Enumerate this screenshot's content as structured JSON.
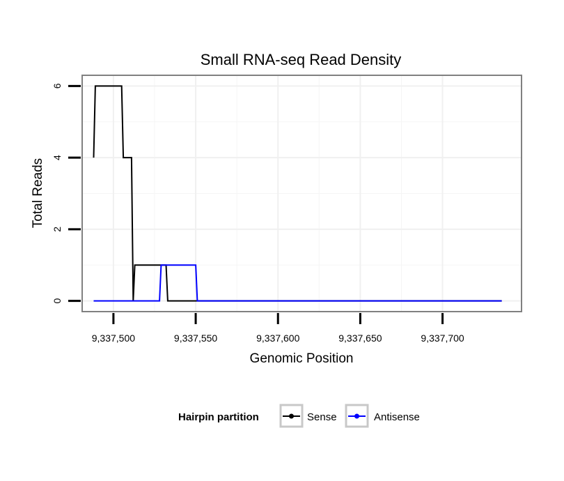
{
  "chart_data": {
    "type": "line",
    "title": "Small RNA-seq Read Density",
    "xlabel": "Genomic Position",
    "ylabel": "Total Reads",
    "xlim": [
      9337481,
      9337748
    ],
    "ylim": [
      -0.3,
      6.3
    ],
    "x_ticks": [
      9337500,
      9337550,
      9337600,
      9337650,
      9337700
    ],
    "x_tick_labels": [
      "9,337,500",
      "9,337,550",
      "9,337,600",
      "9,337,650",
      "9,337,700"
    ],
    "y_ticks": [
      0,
      2,
      4,
      6
    ],
    "y_tick_labels": [
      "0",
      "2",
      "4",
      "6"
    ],
    "grid": true,
    "legend": {
      "title": "Hairpin partition",
      "position": "bottom"
    },
    "series": [
      {
        "name": "Sense",
        "color": "#000000",
        "points": [
          [
            9337488,
            4
          ],
          [
            9337489,
            6
          ],
          [
            9337505,
            6
          ],
          [
            9337506,
            4
          ],
          [
            9337511,
            4
          ],
          [
            9337512,
            0
          ],
          [
            9337513,
            1
          ],
          [
            9337532,
            1
          ],
          [
            9337533,
            0
          ],
          [
            9337736,
            0
          ]
        ]
      },
      {
        "name": "Antisense",
        "color": "#0000ff",
        "points": [
          [
            9337488,
            0
          ],
          [
            9337528,
            0
          ],
          [
            9337529,
            1
          ],
          [
            9337550,
            1
          ],
          [
            9337551,
            0
          ],
          [
            9337736,
            0
          ]
        ]
      }
    ]
  }
}
